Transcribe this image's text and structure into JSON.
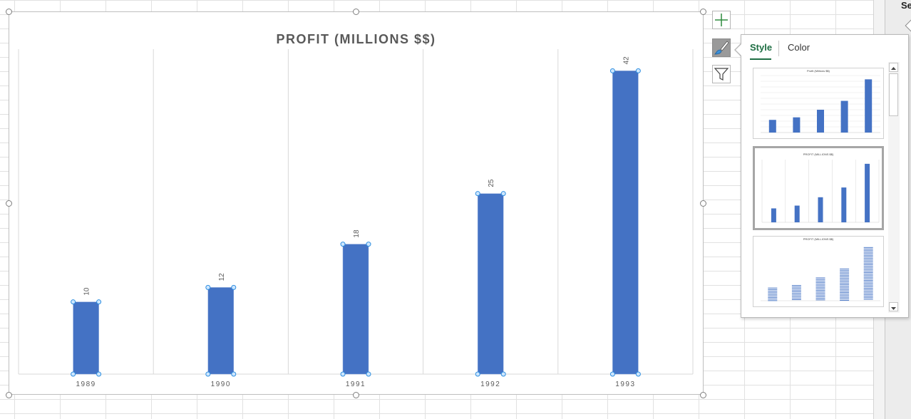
{
  "chart_data": {
    "type": "bar",
    "title": "PROFIT (MILLIONS $$)",
    "categories": [
      "1989",
      "1990",
      "1991",
      "1992",
      "1993"
    ],
    "values": [
      10,
      12,
      18,
      25,
      42
    ],
    "data_labels": [
      "10",
      "12",
      "18",
      "25",
      "42"
    ],
    "ylim": [
      0,
      45
    ],
    "grid": "vertical",
    "bar_color": "#4472c4",
    "xlabel": "",
    "ylabel": ""
  },
  "flyout": {
    "tabs": [
      {
        "label": "Style",
        "selected": true
      },
      {
        "label": "Color",
        "selected": false
      }
    ],
    "thumbnails": [
      {
        "title": "Profit (Millions $$)",
        "style": "gridlines"
      },
      {
        "title": "PROFIT (MILLIONS $$)",
        "style": "vertical-gridlines",
        "selected": true
      },
      {
        "title": "PROFIT (MILLIONS $$)",
        "style": "striped"
      }
    ]
  },
  "chart_buttons": {
    "elements": "plus-icon",
    "styles": "paintbrush-icon",
    "filters": "funnel-icon"
  },
  "side_pane": {
    "label": "Se"
  },
  "colors": {
    "accent": "#1e6e43",
    "bar": "#4472c4",
    "selection_handle": "#2f8fe0"
  }
}
